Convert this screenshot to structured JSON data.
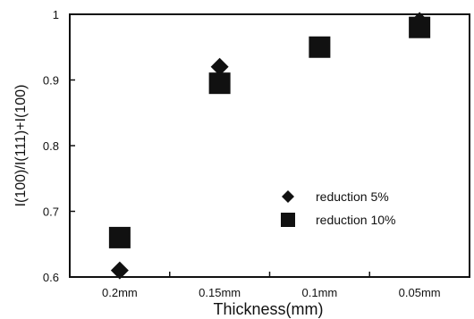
{
  "chart_data": {
    "type": "scatter",
    "categories": [
      "0.2mm",
      "0.15mm",
      "0.1mm",
      "0.05mm"
    ],
    "xlabel": "Thickness(mm)",
    "ylabel": "I(100)/I(111)+I(100)",
    "ylim": [
      0.6,
      1.0
    ],
    "yticks": [
      "0.6",
      "0.7",
      "0.8",
      "0.9",
      "1"
    ],
    "yticks_values": [
      0.6,
      0.7,
      0.8,
      0.9,
      1.0
    ],
    "grid": false,
    "legend_placement": "center-right",
    "series": [
      {
        "name": "reduction 5%",
        "marker": "diamond",
        "color": "#111111",
        "values": [
          0.61,
          0.92,
          0.95,
          0.99
        ]
      },
      {
        "name": "reduction 10%",
        "marker": "square",
        "color": "#111111",
        "values": [
          0.66,
          0.895,
          0.95,
          0.98
        ]
      }
    ]
  }
}
